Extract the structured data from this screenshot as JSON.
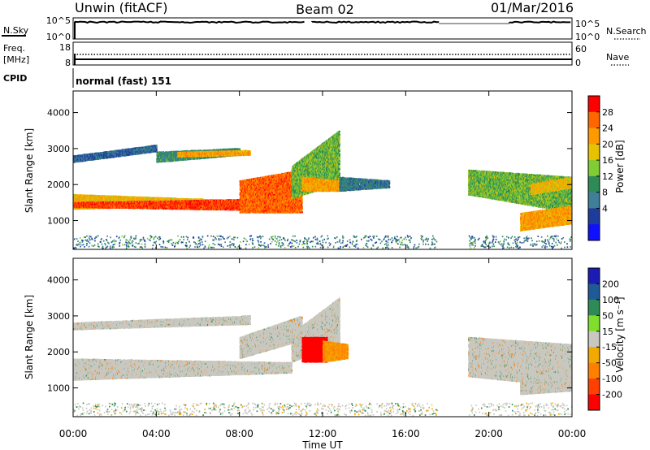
{
  "header": {
    "station": "Unwin (fitACF)",
    "beam": "Beam 02",
    "date": "01/Mar/2016"
  },
  "top_panels": {
    "nsky": {
      "label": "N.Sky",
      "ticks": [
        "10^5",
        "10^0"
      ],
      "right_ticks": [
        "10^5",
        "10^0"
      ],
      "right_label": "N.Search"
    },
    "freq": {
      "label_line1": "Freq.",
      "label_line2": "[MHz]",
      "ticks": [
        "18",
        "8"
      ],
      "right_ticks": [
        "60",
        "0"
      ],
      "right_label": "Nave"
    },
    "cpid": {
      "label": "CPID",
      "mode": "normal (fast) 151"
    }
  },
  "colorbars": {
    "power": {
      "label": "Power [dB]",
      "ticks": [
        "28",
        "24",
        "20",
        "16",
        "12",
        "8",
        "4"
      ],
      "colors": [
        "#ff0000",
        "#ff6600",
        "#ff9900",
        "#e6c200",
        "#7fcc33",
        "#2e8b57",
        "#3f7f99",
        "#1e3c9e",
        "#1010ff"
      ]
    },
    "velocity": {
      "label": "Velocity [m s⁻¹]",
      "ticks": [
        "200",
        "100",
        "50",
        "15",
        "-15",
        "-50",
        "-100",
        "-200"
      ],
      "colors": [
        "#1c1cb4",
        "#1e5a96",
        "#2e8b57",
        "#7fdf2a",
        "#c8c8c0",
        "#f2a900",
        "#ff7f00",
        "#ff4000",
        "#ff0000"
      ]
    }
  },
  "chart_data": [
    {
      "type": "heatmap",
      "name": "power",
      "xlabel": "",
      "ylabel": "Slant Range [km]",
      "xlim": [
        0,
        24
      ],
      "ylim": [
        200,
        4600
      ],
      "yticks": [
        "1000",
        "2000",
        "3000",
        "4000"
      ],
      "regions": [
        {
          "x": [
            0.0,
            10.6
          ],
          "y0": [
            1300,
            1450
          ],
          "y1": [
            1720,
            1500
          ],
          "value": 20
        },
        {
          "x": [
            0.0,
            10.3
          ],
          "y0": [
            1350,
            1250
          ],
          "y1": [
            1500,
            1600
          ],
          "value": 28
        },
        {
          "x": [
            8.0,
            11.0
          ],
          "y0": [
            1200,
            1200
          ],
          "y1": [
            2100,
            2400
          ],
          "value": 26
        },
        {
          "x": [
            0.0,
            4.0
          ],
          "y0": [
            2600,
            2900
          ],
          "y1": [
            2800,
            3100
          ],
          "value": 6
        },
        {
          "x": [
            4.0,
            8.0
          ],
          "y0": [
            2600,
            2800
          ],
          "y1": [
            2900,
            3000
          ],
          "value": 10
        },
        {
          "x": [
            5.0,
            8.5
          ],
          "y0": [
            2750,
            2800
          ],
          "y1": [
            2900,
            2950
          ],
          "value": 22
        },
        {
          "x": [
            10.5,
            12.8
          ],
          "y0": [
            1600,
            2000
          ],
          "y1": [
            2500,
            3500
          ],
          "value": 14
        },
        {
          "x": [
            11.0,
            12.8
          ],
          "y0": [
            1800,
            1800
          ],
          "y1": [
            2200,
            2100
          ],
          "value": 22
        },
        {
          "x": [
            12.8,
            15.2
          ],
          "y0": [
            1800,
            1900
          ],
          "y1": [
            2200,
            2100
          ],
          "value": 8
        },
        {
          "x": [
            19.0,
            24.0
          ],
          "y0": [
            1700,
            1200
          ],
          "y1": [
            2400,
            2200
          ],
          "value": 14
        },
        {
          "x": [
            21.5,
            24.0
          ],
          "y0": [
            700,
            900
          ],
          "y1": [
            1200,
            1400
          ],
          "value": 22
        },
        {
          "x": [
            22.0,
            24.0
          ],
          "y0": [
            1700,
            1900
          ],
          "y1": [
            2000,
            2200
          ],
          "value": 20
        }
      ]
    },
    {
      "type": "heatmap",
      "name": "velocity",
      "xlabel": "Time UT",
      "ylabel": "Slant Range [km]",
      "xlim": [
        0,
        24
      ],
      "ylim": [
        200,
        4600
      ],
      "xticks": [
        "00:00",
        "04:00",
        "08:00",
        "12:00",
        "16:00",
        "20:00",
        "00:00"
      ],
      "yticks": [
        "1000",
        "2000",
        "3000",
        "4000"
      ],
      "regions": [
        {
          "x": [
            0.0,
            10.5
          ],
          "y0": [
            1200,
            1400
          ],
          "y1": [
            1800,
            1700
          ],
          "value": 0
        },
        {
          "x": [
            0.0,
            8.5
          ],
          "y0": [
            2600,
            2750
          ],
          "y1": [
            2800,
            3000
          ],
          "value": 0
        },
        {
          "x": [
            8.0,
            11.0
          ],
          "y0": [
            1800,
            2300
          ],
          "y1": [
            2400,
            3000
          ],
          "value": 0
        },
        {
          "x": [
            10.5,
            12.8
          ],
          "y0": [
            1700,
            2200
          ],
          "y1": [
            2500,
            3500
          ],
          "value": 0
        },
        {
          "x": [
            11.0,
            12.2
          ],
          "y0": [
            1700,
            1700
          ],
          "y1": [
            2400,
            2400
          ],
          "value": -200
        },
        {
          "x": [
            12.0,
            13.2
          ],
          "y0": [
            1700,
            1800
          ],
          "y1": [
            2300,
            2200
          ],
          "value": -50
        },
        {
          "x": [
            19.0,
            24.0
          ],
          "y0": [
            1300,
            1000
          ],
          "y1": [
            2400,
            2200
          ],
          "value": 0
        },
        {
          "x": [
            21.5,
            24.0
          ],
          "y0": [
            800,
            900
          ],
          "y1": [
            1300,
            1400
          ],
          "value": 0
        }
      ]
    }
  ]
}
